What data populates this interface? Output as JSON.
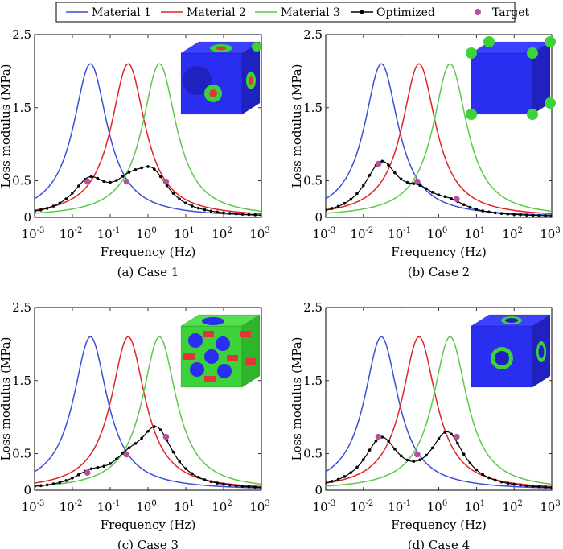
{
  "legend": {
    "items": [
      {
        "label": "Material 1",
        "color": "#3a4fd8",
        "marker": "line"
      },
      {
        "label": "Material 2",
        "color": "#e02424",
        "marker": "line"
      },
      {
        "label": "Material 3",
        "color": "#5bc94a",
        "marker": "line"
      },
      {
        "label": "Optimized",
        "color": "#000000",
        "marker": "line-dots"
      },
      {
        "label": "Target",
        "color": "#b5509f",
        "marker": "dot"
      }
    ]
  },
  "axes": {
    "xlabel": "Frequency (Hz)",
    "ylabel": "Loss modulus (MPa)",
    "x_ticks": [
      {
        "base": "10",
        "exp": "-3"
      },
      {
        "base": "10",
        "exp": "-2"
      },
      {
        "base": "10",
        "exp": "-1"
      },
      {
        "base": "10",
        "exp": "0"
      },
      {
        "base": "10",
        "exp": "1"
      },
      {
        "base": "10",
        "exp": "2"
      },
      {
        "base": "10",
        "exp": "3"
      }
    ],
    "y_ticks": [
      "0",
      "0.5",
      "1.5",
      "2.5"
    ]
  },
  "chart_data": [
    {
      "type": "line",
      "caption": "(a) Case 1",
      "x_scale": "log",
      "xlim": [
        0.001,
        1000
      ],
      "ylim": [
        0,
        2.5
      ],
      "material_peaks": [
        {
          "name": "Material 1",
          "peak_freq": 0.03,
          "peak_value": 2.1
        },
        {
          "name": "Material 2",
          "peak_freq": 0.3,
          "peak_value": 2.1
        },
        {
          "name": "Material 3",
          "peak_freq": 2.0,
          "peak_value": 2.1
        }
      ],
      "optimized_components": [
        [
          0.028,
          0.44
        ],
        [
          0.32,
          0.3
        ],
        [
          1.3,
          0.5
        ]
      ],
      "targets": [
        {
          "freq": 0.025,
          "value": 0.49
        },
        {
          "freq": 0.27,
          "value": 0.49
        },
        {
          "freq": 3.0,
          "value": 0.49
        }
      ],
      "inset": "cube-case-1"
    },
    {
      "type": "line",
      "caption": "(b) Case 2",
      "x_scale": "log",
      "xlim": [
        0.001,
        1000
      ],
      "ylim": [
        0,
        2.5
      ],
      "material_peaks": [
        {
          "name": "Material 1",
          "peak_freq": 0.03,
          "peak_value": 2.1
        },
        {
          "name": "Material 2",
          "peak_freq": 0.3,
          "peak_value": 2.1
        },
        {
          "name": "Material 3",
          "peak_freq": 2.0,
          "peak_value": 2.1
        }
      ],
      "optimized_components": [
        [
          0.03,
          0.7
        ],
        [
          0.3,
          0.24
        ],
        [
          2.0,
          0.13
        ]
      ],
      "targets": [
        {
          "freq": 0.025,
          "value": 0.73
        },
        {
          "freq": 0.27,
          "value": 0.49
        },
        {
          "freq": 3.0,
          "value": 0.25
        }
      ],
      "inset": "cube-case-2"
    },
    {
      "type": "line",
      "caption": "(c) Case 3",
      "x_scale": "log",
      "xlim": [
        0.001,
        1000
      ],
      "ylim": [
        0,
        2.5
      ],
      "material_peaks": [
        {
          "name": "Material 1",
          "peak_freq": 0.03,
          "peak_value": 2.1
        },
        {
          "name": "Material 2",
          "peak_freq": 0.3,
          "peak_value": 2.1
        },
        {
          "name": "Material 3",
          "peak_freq": 2.0,
          "peak_value": 2.1
        }
      ],
      "optimized_components": [
        [
          0.03,
          0.16
        ],
        [
          0.3,
          0.27
        ],
        [
          1.7,
          0.76
        ]
      ],
      "targets": [
        {
          "freq": 0.025,
          "value": 0.24
        },
        {
          "freq": 0.27,
          "value": 0.49
        },
        {
          "freq": 3.0,
          "value": 0.73
        }
      ],
      "inset": "cube-case-3"
    },
    {
      "type": "line",
      "caption": "(d) Case 4",
      "x_scale": "log",
      "xlim": [
        0.001,
        1000
      ],
      "ylim": [
        0,
        2.5
      ],
      "material_peaks": [
        {
          "name": "Material 1",
          "peak_freq": 0.03,
          "peak_value": 2.1
        },
        {
          "name": "Material 2",
          "peak_freq": 0.3,
          "peak_value": 2.1
        },
        {
          "name": "Material 3",
          "peak_freq": 2.0,
          "peak_value": 2.1
        }
      ],
      "optimized_components": [
        [
          0.03,
          0.66
        ],
        [
          0.3,
          0.0
        ],
        [
          1.7,
          0.74
        ]
      ],
      "targets": [
        {
          "freq": 0.025,
          "value": 0.73
        },
        {
          "freq": 0.27,
          "value": 0.49
        },
        {
          "freq": 3.0,
          "value": 0.73
        }
      ],
      "inset": "cube-case-4"
    }
  ],
  "colors": {
    "material1": "#3a4fd8",
    "material2": "#e02424",
    "material3": "#5bc94a",
    "optimized": "#000000",
    "target": "#b5509f",
    "cube_blue": "#2a2ef0",
    "cube_green": "#3ed23a",
    "cube_red": "#e8323a"
  }
}
